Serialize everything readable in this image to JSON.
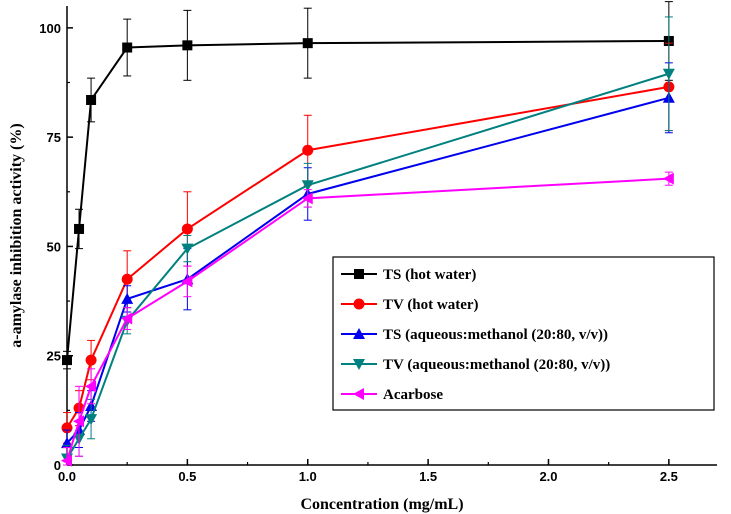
{
  "chart_data": {
    "type": "line",
    "title": "",
    "xlabel": "Concentration (mg/mL)",
    "ylabel": "a-amylase inhibition activity (%)",
    "xlim": [
      0,
      2.7
    ],
    "ylim": [
      0,
      105
    ],
    "x_ticks": [
      0.0,
      0.5,
      1.0,
      1.5,
      2.0,
      2.5
    ],
    "x_tick_labels": [
      "0.0",
      "0.5",
      "1.0",
      "1.5",
      "2.0",
      "2.5"
    ],
    "y_ticks": [
      0,
      25,
      50,
      75,
      100
    ],
    "y_tick_labels": [
      "0",
      "25",
      "50",
      "75",
      "100"
    ],
    "grid": false,
    "legend_position": "center-right",
    "series": [
      {
        "name": "TS (hot water)",
        "color": "#000000",
        "marker": "square",
        "x": [
          0.0,
          0.05,
          0.1,
          0.25,
          0.5,
          1.0,
          2.5
        ],
        "y": [
          24,
          54,
          83.5,
          95.5,
          96,
          96.5,
          97
        ],
        "err": [
          2,
          4.5,
          5,
          6.5,
          8,
          8,
          9
        ]
      },
      {
        "name": "TV (hot water)",
        "color": "#ff0000",
        "marker": "circle",
        "x": [
          0.0,
          0.05,
          0.1,
          0.25,
          0.5,
          1.0,
          2.5
        ],
        "y": [
          8.5,
          13,
          24,
          42.5,
          54,
          72,
          86.5
        ],
        "err": [
          3.5,
          4,
          4.5,
          6.5,
          8.5,
          8,
          10
        ]
      },
      {
        "name": "TS (aqueous:methanol (20:80, v/v))",
        "color": "#0000ee",
        "marker": "triangle-up",
        "x": [
          0.0,
          0.05,
          0.1,
          0.25,
          0.5,
          1.0,
          2.5
        ],
        "y": [
          5,
          8,
          13.5,
          38,
          42.5,
          62,
          84
        ],
        "err": [
          3,
          4,
          3.5,
          3,
          7,
          6,
          8
        ]
      },
      {
        "name": "TV (aqueous:methanol (20:80, v/v))",
        "color": "#00807f",
        "marker": "triangle-down",
        "x": [
          0.0,
          0.05,
          0.1,
          0.25,
          0.5,
          1.0,
          2.5
        ],
        "y": [
          1.5,
          6,
          10.5,
          33,
          49.5,
          64,
          89.5
        ],
        "err": [
          3,
          4,
          4.5,
          3,
          3,
          5,
          13
        ]
      },
      {
        "name": "Acarbose",
        "color": "#ff00ff",
        "marker": "triangle-left",
        "x": [
          0.0,
          0.05,
          0.1,
          0.25,
          0.5,
          1.0,
          2.5
        ],
        "y": [
          1,
          10,
          18,
          33.5,
          42,
          61,
          65.5
        ],
        "err": [
          3,
          8,
          4,
          2.5,
          3.5,
          2,
          1.5
        ]
      }
    ]
  }
}
